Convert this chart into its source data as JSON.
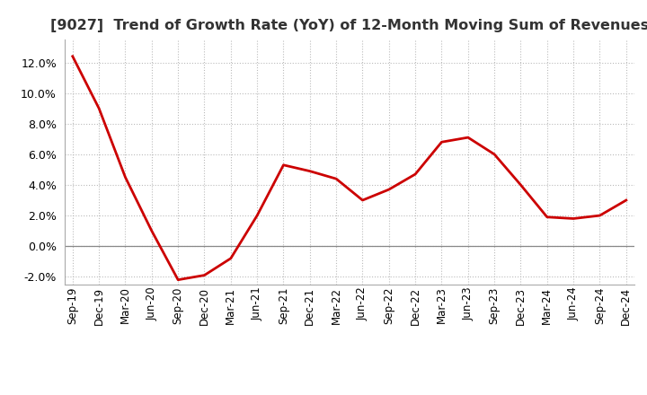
{
  "title": "[9027]  Trend of Growth Rate (YoY) of 12-Month Moving Sum of Revenues",
  "title_fontsize": 11.5,
  "title_fontweight": "bold",
  "line_color": "#CC0000",
  "line_width": 2.0,
  "background_color": "#FFFFFF",
  "grid_color": "#BBBBBB",
  "labels": [
    "Sep-19",
    "Dec-19",
    "Mar-20",
    "Jun-20",
    "Sep-20",
    "Dec-20",
    "Mar-21",
    "Jun-21",
    "Sep-21",
    "Dec-21",
    "Mar-22",
    "Jun-22",
    "Sep-22",
    "Dec-22",
    "Mar-23",
    "Jun-23",
    "Sep-23",
    "Dec-23",
    "Mar-24",
    "Jun-24",
    "Sep-24",
    "Dec-24"
  ],
  "values": [
    0.124,
    0.09,
    0.045,
    0.01,
    -0.022,
    -0.019,
    -0.008,
    0.02,
    0.053,
    0.049,
    0.044,
    0.03,
    0.037,
    0.047,
    0.068,
    0.071,
    0.06,
    0.04,
    0.019,
    0.018,
    0.02,
    0.03
  ],
  "ylim": [
    -0.025,
    0.135
  ],
  "yticks": [
    -0.02,
    0.0,
    0.02,
    0.04,
    0.06,
    0.08,
    0.1,
    0.12
  ],
  "ylabel_fontsize": 9,
  "xlabel_fontsize": 8.5
}
